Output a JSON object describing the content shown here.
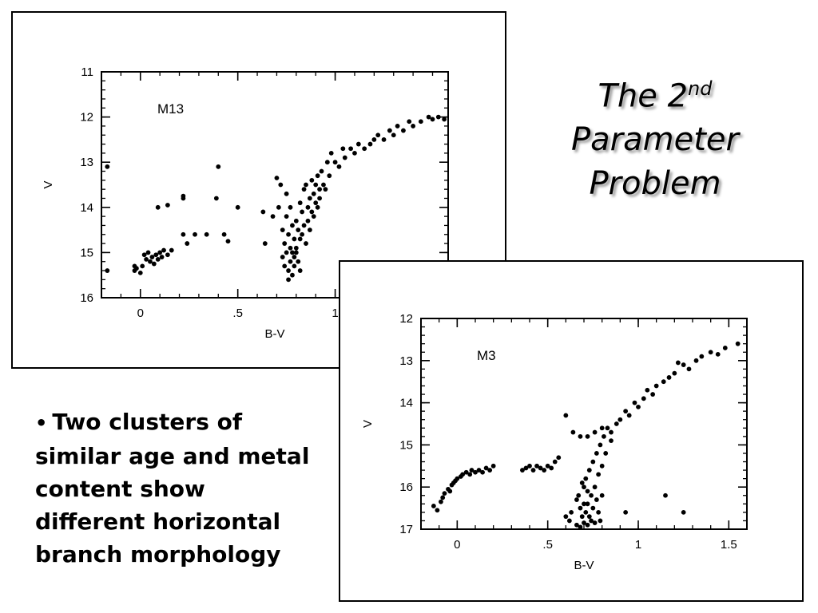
{
  "slide": {
    "title_line1": "The 2",
    "title_sup": "nd",
    "title_line2": "Parameter",
    "title_line3": "Problem",
    "bullet_symbol": "•",
    "bullet_text": "Two clusters of similar age and metal content show different horizontal branch morphology"
  },
  "chart_data": [
    {
      "type": "scatter",
      "title": "M13",
      "xlabel": "B-V",
      "ylabel": "V",
      "xlim": [
        -0.2,
        1.58
      ],
      "ylim": [
        16,
        11
      ],
      "x_tick_values": [
        0,
        0.5,
        1
      ],
      "x_tick_labels": [
        "0",
        ".5",
        "1"
      ],
      "y_tick_values": [
        11,
        12,
        13,
        14,
        15,
        16
      ],
      "y_tick_labels": [
        "11",
        "12",
        "13",
        "14",
        "15",
        "16"
      ],
      "series": [
        {
          "name": "",
          "points": [
            [
              -0.17,
              15.4
            ],
            [
              -0.17,
              13.1
            ],
            [
              -0.03,
              15.3
            ],
            [
              -0.03,
              15.4
            ],
            [
              -0.02,
              15.35
            ],
            [
              0.0,
              15.45
            ],
            [
              0.01,
              15.3
            ],
            [
              0.02,
              15.05
            ],
            [
              0.03,
              15.15
            ],
            [
              0.04,
              15.0
            ],
            [
              0.05,
              15.2
            ],
            [
              0.06,
              15.1
            ],
            [
              0.07,
              15.25
            ],
            [
              0.08,
              15.05
            ],
            [
              0.09,
              15.15
            ],
            [
              0.1,
              15.0
            ],
            [
              0.11,
              15.1
            ],
            [
              0.12,
              14.95
            ],
            [
              0.14,
              15.05
            ],
            [
              0.16,
              14.95
            ],
            [
              0.09,
              14.0
            ],
            [
              0.14,
              13.95
            ],
            [
              0.22,
              13.8
            ],
            [
              0.22,
              13.75
            ],
            [
              0.22,
              14.6
            ],
            [
              0.24,
              14.8
            ],
            [
              0.28,
              14.6
            ],
            [
              0.34,
              14.6
            ],
            [
              0.39,
              13.8
            ],
            [
              0.4,
              13.1
            ],
            [
              0.43,
              14.6
            ],
            [
              0.45,
              14.75
            ],
            [
              0.5,
              14.0
            ],
            [
              0.63,
              14.1
            ],
            [
              0.64,
              14.8
            ],
            [
              0.68,
              14.2
            ],
            [
              0.7,
              13.35
            ],
            [
              0.71,
              14.0
            ],
            [
              0.72,
              13.5
            ],
            [
              0.73,
              14.5
            ],
            [
              0.73,
              15.1
            ],
            [
              0.74,
              14.8
            ],
            [
              0.74,
              15.3
            ],
            [
              0.75,
              14.2
            ],
            [
              0.75,
              13.7
            ],
            [
              0.75,
              15.0
            ],
            [
              0.76,
              14.6
            ],
            [
              0.76,
              15.4
            ],
            [
              0.76,
              15.6
            ],
            [
              0.77,
              14.0
            ],
            [
              0.77,
              14.9
            ],
            [
              0.77,
              15.2
            ],
            [
              0.78,
              14.4
            ],
            [
              0.78,
              15.0
            ],
            [
              0.78,
              15.5
            ],
            [
              0.79,
              14.7
            ],
            [
              0.79,
              15.1
            ],
            [
              0.79,
              15.3
            ],
            [
              0.8,
              14.3
            ],
            [
              0.8,
              14.9
            ],
            [
              0.8,
              15.0
            ],
            [
              0.81,
              14.5
            ],
            [
              0.81,
              15.2
            ],
            [
              0.82,
              13.9
            ],
            [
              0.82,
              14.7
            ],
            [
              0.82,
              15.4
            ],
            [
              0.83,
              14.1
            ],
            [
              0.83,
              14.6
            ],
            [
              0.84,
              13.6
            ],
            [
              0.84,
              14.4
            ],
            [
              0.85,
              14.8
            ],
            [
              0.85,
              13.5
            ],
            [
              0.86,
              14.0
            ],
            [
              0.86,
              14.3
            ],
            [
              0.87,
              13.8
            ],
            [
              0.87,
              14.5
            ],
            [
              0.88,
              13.4
            ],
            [
              0.88,
              14.1
            ],
            [
              0.89,
              14.2
            ],
            [
              0.89,
              13.7
            ],
            [
              0.9,
              13.5
            ],
            [
              0.9,
              13.9
            ],
            [
              0.91,
              14.0
            ],
            [
              0.91,
              13.3
            ],
            [
              0.92,
              13.6
            ],
            [
              0.92,
              13.8
            ],
            [
              0.93,
              13.2
            ],
            [
              0.94,
              13.5
            ],
            [
              0.95,
              13.6
            ],
            [
              0.96,
              13.0
            ],
            [
              0.97,
              13.3
            ],
            [
              0.98,
              12.8
            ],
            [
              1.0,
              13.0
            ],
            [
              1.02,
              13.1
            ],
            [
              1.04,
              12.7
            ],
            [
              1.05,
              12.9
            ],
            [
              1.08,
              12.7
            ],
            [
              1.1,
              12.8
            ],
            [
              1.12,
              12.6
            ],
            [
              1.15,
              12.7
            ],
            [
              1.18,
              12.6
            ],
            [
              1.2,
              12.5
            ],
            [
              1.22,
              12.4
            ],
            [
              1.25,
              12.5
            ],
            [
              1.28,
              12.3
            ],
            [
              1.3,
              12.4
            ],
            [
              1.32,
              12.2
            ],
            [
              1.35,
              12.3
            ],
            [
              1.38,
              12.1
            ],
            [
              1.4,
              12.2
            ],
            [
              1.44,
              12.1
            ],
            [
              1.48,
              12.0
            ],
            [
              1.5,
              12.05
            ],
            [
              1.53,
              12.0
            ],
            [
              1.56,
              12.05
            ]
          ]
        }
      ]
    },
    {
      "type": "scatter",
      "title": "M3",
      "xlabel": "B-V",
      "ylabel": "V",
      "xlim": [
        -0.2,
        1.6
      ],
      "ylim": [
        17,
        12
      ],
      "x_tick_values": [
        0,
        0.5,
        1,
        1.5
      ],
      "x_tick_labels": [
        "0",
        ".5",
        "1",
        "1.5"
      ],
      "y_tick_values": [
        12,
        13,
        14,
        15,
        16,
        17
      ],
      "y_tick_labels": [
        "12",
        "13",
        "14",
        "15",
        "16",
        "17"
      ],
      "series": [
        {
          "name": "",
          "points": [
            [
              -0.13,
              16.45
            ],
            [
              -0.11,
              16.55
            ],
            [
              -0.09,
              16.35
            ],
            [
              -0.08,
              16.25
            ],
            [
              -0.07,
              16.15
            ],
            [
              -0.05,
              16.05
            ],
            [
              -0.04,
              16.1
            ],
            [
              -0.03,
              15.95
            ],
            [
              -0.02,
              15.9
            ],
            [
              -0.01,
              15.85
            ],
            [
              0.0,
              15.8
            ],
            [
              0.02,
              15.75
            ],
            [
              0.03,
              15.7
            ],
            [
              0.05,
              15.65
            ],
            [
              0.07,
              15.7
            ],
            [
              0.08,
              15.6
            ],
            [
              0.1,
              15.65
            ],
            [
              0.12,
              15.6
            ],
            [
              0.14,
              15.65
            ],
            [
              0.16,
              15.55
            ],
            [
              0.18,
              15.6
            ],
            [
              0.2,
              15.5
            ],
            [
              0.36,
              15.6
            ],
            [
              0.38,
              15.55
            ],
            [
              0.4,
              15.5
            ],
            [
              0.42,
              15.6
            ],
            [
              0.44,
              15.5
            ],
            [
              0.46,
              15.55
            ],
            [
              0.48,
              15.6
            ],
            [
              0.5,
              15.5
            ],
            [
              0.52,
              15.55
            ],
            [
              0.54,
              15.4
            ],
            [
              0.56,
              15.3
            ],
            [
              0.6,
              16.7
            ],
            [
              0.62,
              16.8
            ],
            [
              0.63,
              16.6
            ],
            [
              0.66,
              16.3
            ],
            [
              0.66,
              16.9
            ],
            [
              0.67,
              16.2
            ],
            [
              0.68,
              16.5
            ],
            [
              0.68,
              16.95
            ],
            [
              0.69,
              15.9
            ],
            [
              0.69,
              16.7
            ],
            [
              0.7,
              16.0
            ],
            [
              0.7,
              16.4
            ],
            [
              0.7,
              16.85
            ],
            [
              0.71,
              15.8
            ],
            [
              0.71,
              16.6
            ],
            [
              0.72,
              16.1
            ],
            [
              0.72,
              16.9
            ],
            [
              0.72,
              16.4
            ],
            [
              0.73,
              16.7
            ],
            [
              0.73,
              15.6
            ],
            [
              0.74,
              16.2
            ],
            [
              0.74,
              16.8
            ],
            [
              0.75,
              15.4
            ],
            [
              0.75,
              16.5
            ],
            [
              0.76,
              16.0
            ],
            [
              0.76,
              16.85
            ],
            [
              0.77,
              15.2
            ],
            [
              0.77,
              16.3
            ],
            [
              0.78,
              15.7
            ],
            [
              0.78,
              16.6
            ],
            [
              0.79,
              15.0
            ],
            [
              0.79,
              16.8
            ],
            [
              0.8,
              15.5
            ],
            [
              0.8,
              16.2
            ],
            [
              0.81,
              14.8
            ],
            [
              0.82,
              15.2
            ],
            [
              0.83,
              14.6
            ],
            [
              0.64,
              14.7
            ],
            [
              0.68,
              14.8
            ],
            [
              0.72,
              14.8
            ],
            [
              0.76,
              14.7
            ],
            [
              0.8,
              14.6
            ],
            [
              0.85,
              14.7
            ],
            [
              0.88,
              14.5
            ],
            [
              0.85,
              14.9
            ],
            [
              0.9,
              14.4
            ],
            [
              0.93,
              14.2
            ],
            [
              0.95,
              14.3
            ],
            [
              0.98,
              14.0
            ],
            [
              1.0,
              14.1
            ],
            [
              1.03,
              13.9
            ],
            [
              1.05,
              13.7
            ],
            [
              1.08,
              13.8
            ],
            [
              1.1,
              13.6
            ],
            [
              1.14,
              13.5
            ],
            [
              1.17,
              13.4
            ],
            [
              1.2,
              13.3
            ],
            [
              1.25,
              13.1
            ],
            [
              1.28,
              13.2
            ],
            [
              1.32,
              13.0
            ],
            [
              1.35,
              12.9
            ],
            [
              1.4,
              12.8
            ],
            [
              1.44,
              12.85
            ],
            [
              1.48,
              12.7
            ],
            [
              1.55,
              12.6
            ],
            [
              1.22,
              13.05
            ],
            [
              0.6,
              14.3
            ],
            [
              0.93,
              16.6
            ],
            [
              1.15,
              16.2
            ],
            [
              1.25,
              16.6
            ]
          ]
        }
      ]
    }
  ]
}
